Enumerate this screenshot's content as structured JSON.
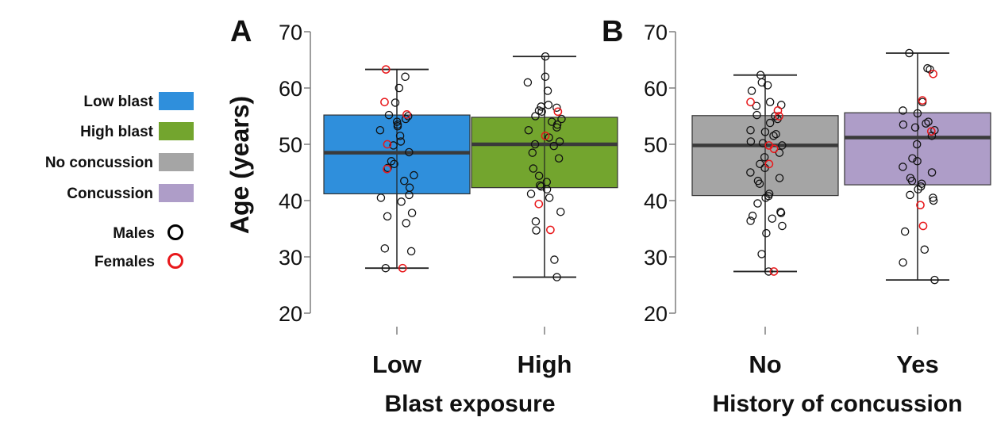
{
  "chart_data": [
    {
      "type": "boxplot",
      "panel_label": "A",
      "ylabel": "Age (years)",
      "xlabel": "Blast exposure",
      "ylim": [
        20,
        70
      ],
      "yticks": [
        "20",
        "30",
        "40",
        "50",
        "60",
        "70"
      ],
      "categories": [
        "Low",
        "High"
      ],
      "boxes": [
        {
          "name": "Low",
          "color": "#2f8fdc",
          "min": 28,
          "q1": 41.2,
          "median": 48.5,
          "q3": 55.2,
          "max": 63.3,
          "males": [
            62,
            60,
            57.4,
            55.2,
            55,
            54.5,
            54,
            53.5,
            53.2,
            52.5,
            51.5,
            50.5,
            49.8,
            48.6,
            47,
            46.5,
            45.8,
            44.5,
            43.5,
            42.3,
            41,
            40.5,
            39.8,
            37.8,
            37.2,
            36,
            31.5,
            31,
            28
          ],
          "females": [
            63.3,
            57.5,
            55.3,
            50,
            45.6,
            28
          ]
        },
        {
          "name": "High",
          "color": "#73a52e",
          "min": 26.4,
          "q1": 42.3,
          "median": 50,
          "q3": 54.8,
          "max": 65.6,
          "males": [
            65.6,
            62,
            61,
            59.5,
            57,
            56.7,
            56.5,
            56,
            55.8,
            55,
            54.5,
            54,
            53.5,
            53,
            52.5,
            51.2,
            50.5,
            50,
            49.7,
            48.5,
            47.5,
            45.7,
            44.4,
            43.3,
            42.7,
            42.5,
            42,
            41.2,
            40.5,
            38,
            36.3,
            34.7,
            29.5,
            26.4
          ],
          "females": [
            55.8,
            51.5,
            39.4,
            34.8
          ]
        }
      ]
    },
    {
      "type": "boxplot",
      "panel_label": "B",
      "ylabel": "",
      "xlabel": "History of concussion",
      "ylim": [
        20,
        70
      ],
      "yticks": [
        "20",
        "30",
        "40",
        "50",
        "60",
        "70"
      ],
      "categories": [
        "No",
        "Yes"
      ],
      "boxes": [
        {
          "name": "No",
          "color": "#a5a5a5",
          "min": 27.4,
          "q1": 40.9,
          "median": 49.8,
          "q3": 55.1,
          "max": 62.3,
          "males": [
            62.3,
            61,
            60.5,
            59.5,
            57.5,
            57,
            56.8,
            55.2,
            55,
            54.5,
            53.8,
            52.5,
            52.2,
            51.8,
            51.5,
            50.5,
            50.2,
            49.8,
            48.5,
            47.7,
            46.5,
            45.8,
            45,
            44,
            43.5,
            43,
            41.2,
            40.8,
            40.5,
            39.5,
            38,
            37.8,
            37.3,
            36.8,
            36.4,
            35.5,
            34.2,
            30.5,
            27.4
          ],
          "females": [
            57.5,
            56,
            55,
            49.8,
            49.2,
            46.5,
            27.4
          ]
        },
        {
          "name": "Yes",
          "color": "#ae9dc8",
          "min": 25.9,
          "q1": 42.8,
          "median": 51.2,
          "q3": 55.6,
          "max": 66.2,
          "males": [
            66.2,
            63.5,
            63.3,
            57.5,
            56,
            55.5,
            54,
            53.7,
            53.5,
            53,
            52.5,
            51.5,
            50,
            47.5,
            47,
            46,
            45,
            44,
            43.5,
            43,
            42.5,
            42,
            41,
            40.5,
            40,
            34.5,
            31.3,
            29,
            25.9
          ],
          "females": [
            62.5,
            57.8,
            52.3,
            39.2,
            35.5
          ]
        }
      ]
    }
  ],
  "legend": {
    "items": [
      {
        "label": "Low blast",
        "kind": "box",
        "color": "#2f8fdc"
      },
      {
        "label": "High blast",
        "kind": "box",
        "color": "#73a52e"
      },
      {
        "label": "No concussion",
        "kind": "box",
        "color": "#a5a5a5"
      },
      {
        "label": "Concussion",
        "kind": "box",
        "color": "#ae9dc8"
      },
      {
        "label": "Males",
        "kind": "circle",
        "color": "#000000"
      },
      {
        "label": "Females",
        "kind": "circle",
        "color": "#e8181b"
      }
    ]
  }
}
